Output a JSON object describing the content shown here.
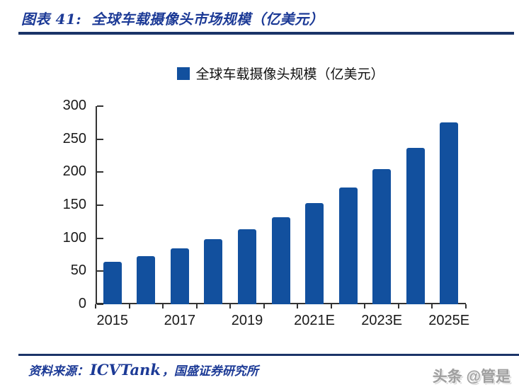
{
  "header": {
    "figure_number": "图表 41:",
    "title": "全球车载摄像头市场规模（亿美元）"
  },
  "legend": {
    "label": "全球车载摄像头规模（亿美元）"
  },
  "chart_data": {
    "type": "bar",
    "title": "全球车载摄像头市场规模（亿美元）",
    "categories": [
      "2015",
      "2016",
      "2017",
      "2018",
      "2019",
      "2020",
      "2021E",
      "2022E",
      "2023E",
      "2024E",
      "2025E"
    ],
    "values": [
      64,
      73,
      85,
      99,
      114,
      132,
      153,
      177,
      205,
      237,
      275
    ],
    "x_tick_labels_shown": [
      "2015",
      "2017",
      "2019",
      "2021E",
      "2023E",
      "2025E"
    ],
    "y_ticks": [
      0,
      50,
      100,
      150,
      200,
      250,
      300
    ],
    "ylim": [
      0,
      300
    ],
    "xlabel": "",
    "ylabel": "",
    "grid": false,
    "legend_entries": [
      "全球车载摄像头规模（亿美元）"
    ],
    "legend_position": "top-center",
    "bar_color": "#12509e"
  },
  "footer": {
    "source_label": "资料来源：",
    "source_en": "ICVTank",
    "source_rest": "，国盛证券研究所"
  },
  "watermark": "头条 @管是",
  "colors": {
    "bar": "#12509e",
    "title_blue": "#1c3a96",
    "rule_navy": "#1b3468",
    "watermark_gray": "#9f9f9f"
  }
}
